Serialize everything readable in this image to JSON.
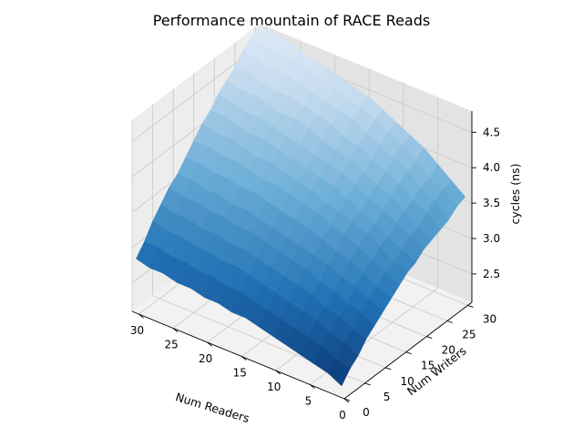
{
  "chart_data": {
    "type": "surface",
    "title": "Performance mountain of RACE Reads",
    "xlabel": "Num Readers",
    "ylabel": "Num Writers",
    "zlabel": "cycles (ns)",
    "xlim": [
      0,
      31
    ],
    "ylim": [
      0,
      31
    ],
    "zlim": [
      2.1,
      4.8
    ],
    "x_ticks": [
      0,
      5,
      10,
      15,
      20,
      25,
      30
    ],
    "y_ticks": [
      0,
      5,
      10,
      15,
      20,
      25,
      30
    ],
    "z_ticks": [
      2.5,
      3.0,
      3.5,
      4.0,
      4.5
    ],
    "x_tick_labels": [
      "0",
      "5",
      "10",
      "15",
      "20",
      "25",
      "30"
    ],
    "y_tick_labels": [
      "0",
      "5",
      "10",
      "15",
      "20",
      "25",
      "30"
    ],
    "z_tick_labels": [
      "2.5",
      "3.0",
      "3.5",
      "4.0",
      "4.5"
    ],
    "colormap": "Blues",
    "grid": true,
    "readers": [
      1,
      3,
      5,
      7,
      9,
      11,
      13,
      15,
      17,
      19,
      21,
      23,
      25,
      27,
      29,
      31
    ],
    "writers": [
      1,
      3,
      5,
      7,
      9,
      11,
      13,
      15,
      17,
      19,
      21,
      23,
      25,
      27,
      29,
      31
    ],
    "z": [
      [
        2.2,
        2.35,
        2.45,
        2.6,
        2.7,
        2.8,
        2.9,
        3.0,
        3.1,
        3.15,
        3.25,
        3.3,
        3.35,
        3.4,
        3.5,
        3.55
      ],
      [
        2.3,
        2.4,
        2.55,
        2.65,
        2.8,
        2.9,
        3.0,
        3.1,
        3.15,
        3.25,
        3.35,
        3.4,
        3.5,
        3.6,
        3.65,
        3.7
      ],
      [
        2.35,
        2.5,
        2.6,
        2.75,
        2.85,
        3.0,
        3.1,
        3.2,
        3.3,
        3.35,
        3.45,
        3.55,
        3.6,
        3.7,
        3.75,
        3.85
      ],
      [
        2.4,
        2.55,
        2.7,
        2.8,
        2.95,
        3.05,
        3.2,
        3.3,
        3.4,
        3.45,
        3.55,
        3.65,
        3.75,
        3.85,
        3.9,
        4.0
      ],
      [
        2.45,
        2.6,
        2.75,
        2.9,
        3.0,
        3.15,
        3.25,
        3.4,
        3.5,
        3.55,
        3.65,
        3.75,
        3.85,
        3.95,
        4.05,
        4.1
      ],
      [
        2.5,
        2.65,
        2.8,
        2.95,
        3.1,
        3.2,
        3.35,
        3.45,
        3.55,
        3.65,
        3.75,
        3.85,
        3.95,
        4.05,
        4.15,
        4.2
      ],
      [
        2.55,
        2.7,
        2.85,
        3.0,
        3.15,
        3.25,
        3.4,
        3.55,
        3.6,
        3.75,
        3.85,
        3.95,
        4.05,
        4.15,
        4.25,
        4.3
      ],
      [
        2.6,
        2.75,
        2.9,
        3.05,
        3.2,
        3.3,
        3.45,
        3.6,
        3.7,
        3.8,
        3.9,
        4.0,
        4.1,
        4.25,
        4.35,
        4.4
      ],
      [
        2.6,
        2.8,
        2.95,
        3.1,
        3.25,
        3.35,
        3.5,
        3.65,
        3.75,
        3.85,
        3.95,
        4.05,
        4.2,
        4.3,
        4.4,
        4.45
      ],
      [
        2.65,
        2.8,
        3.0,
        3.15,
        3.3,
        3.4,
        3.55,
        3.7,
        3.8,
        3.9,
        4.0,
        4.15,
        4.25,
        4.35,
        4.45,
        4.5
      ],
      [
        2.65,
        2.85,
        3.0,
        3.15,
        3.3,
        3.45,
        3.6,
        3.7,
        3.85,
        3.95,
        4.05,
        4.2,
        4.3,
        4.4,
        4.5,
        4.55
      ],
      [
        2.7,
        2.85,
        3.05,
        3.2,
        3.35,
        3.45,
        3.6,
        3.75,
        3.85,
        4.0,
        4.1,
        4.2,
        4.35,
        4.45,
        4.55,
        4.6
      ],
      [
        2.7,
        2.9,
        3.05,
        3.2,
        3.35,
        3.5,
        3.65,
        3.8,
        3.9,
        4.0,
        4.15,
        4.25,
        4.35,
        4.5,
        4.6,
        4.65
      ],
      [
        2.75,
        2.9,
        3.1,
        3.25,
        3.4,
        3.5,
        3.65,
        3.8,
        3.95,
        4.05,
        4.15,
        4.3,
        4.4,
        4.5,
        4.65,
        4.7
      ],
      [
        2.75,
        2.95,
        3.1,
        3.25,
        3.4,
        3.55,
        3.7,
        3.85,
        3.95,
        4.1,
        4.2,
        4.3,
        4.45,
        4.55,
        4.65,
        4.75
      ],
      [
        2.8,
        2.95,
        3.15,
        3.3,
        3.45,
        3.55,
        3.7,
        3.85,
        4.0,
        4.1,
        4.25,
        4.35,
        4.45,
        4.6,
        4.7,
        4.75
      ]
    ]
  }
}
